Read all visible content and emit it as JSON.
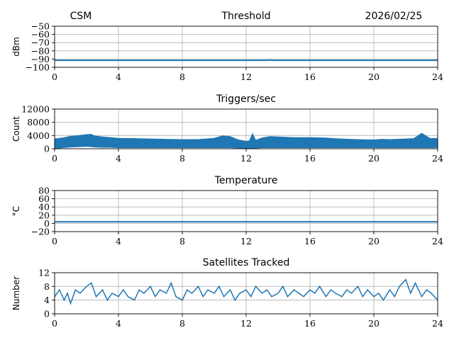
{
  "header": {
    "left": "CSM",
    "date": "2026/02/25"
  },
  "colors": {
    "series": "#1f77b4",
    "grid": "#b0b0b0"
  },
  "chart_data": [
    {
      "type": "line",
      "title": "Threshold",
      "xlabel": "",
      "ylabel": "dBm",
      "xlim": [
        0,
        24
      ],
      "ylim": [
        -100,
        -50
      ],
      "xticks": [
        0,
        4,
        8,
        12,
        16,
        20,
        24
      ],
      "yticks": [
        -100,
        -90,
        -80,
        -70,
        -60,
        -50
      ],
      "grid": true,
      "style": "line",
      "series": [
        {
          "x": [
            0,
            4,
            8,
            12,
            13.4,
            13.5,
            13.6,
            16,
            20,
            24
          ],
          "y": [
            -91.5,
            -91.5,
            -91.5,
            -91.5,
            -91.5,
            -91,
            -91.5,
            -91.5,
            -91.5,
            -91.5
          ]
        }
      ]
    },
    {
      "type": "area",
      "title": "Triggers/sec",
      "xlabel": "",
      "ylabel": "Count",
      "xlim": [
        0,
        24
      ],
      "ylim": [
        0,
        12000
      ],
      "xticks": [
        0,
        4,
        8,
        12,
        16,
        20,
        24
      ],
      "yticks": [
        0,
        4000,
        8000,
        12000
      ],
      "grid": true,
      "style": "band",
      "series": [
        {
          "x": [
            0,
            0.5,
            1,
            1.5,
            2,
            2.3,
            2.5,
            3,
            3.5,
            4,
            5,
            6,
            7,
            8,
            9,
            10,
            10.5,
            11,
            11.5,
            12,
            12.2,
            12.4,
            12.6,
            13,
            13.5,
            14,
            14.5,
            15,
            16,
            17,
            17.5,
            18,
            18.5,
            19,
            20,
            20.5,
            21,
            22,
            22.5,
            23,
            23.5,
            24
          ],
          "y": [
            3000,
            3300,
            3800,
            4000,
            4300,
            4400,
            3900,
            3600,
            3400,
            3200,
            3100,
            3000,
            2900,
            2800,
            2800,
            3200,
            3900,
            3700,
            2700,
            2300,
            2400,
            4600,
            2600,
            3300,
            3700,
            3600,
            3500,
            3400,
            3400,
            3300,
            3100,
            3000,
            2900,
            2800,
            2700,
            2900,
            2800,
            3000,
            3100,
            4700,
            3200,
            3100
          ],
          "low": [
            0,
            300,
            500,
            600,
            700,
            600,
            500,
            400,
            400,
            300,
            300,
            300,
            300,
            300,
            300,
            300,
            300,
            300,
            200,
            100,
            100,
            200,
            200,
            300,
            300,
            300,
            300,
            300,
            300,
            300,
            300,
            300,
            300,
            300,
            300,
            300,
            300,
            300,
            300,
            300,
            300,
            300
          ]
        }
      ]
    },
    {
      "type": "line",
      "title": "Temperature",
      "xlabel": "",
      "ylabel": "°C",
      "xlim": [
        0,
        24
      ],
      "ylim": [
        -20,
        80
      ],
      "xticks": [
        0,
        4,
        8,
        12,
        16,
        20,
        24
      ],
      "yticks": [
        -20,
        0,
        20,
        40,
        60,
        80
      ],
      "grid": true,
      "style": "line",
      "series": [
        {
          "x": [
            0,
            24
          ],
          "y": [
            4,
            4
          ]
        }
      ]
    },
    {
      "type": "line",
      "title": "Satellites Tracked",
      "xlabel": "",
      "ylabel": "Number",
      "xlim": [
        0,
        24
      ],
      "ylim": [
        0,
        12
      ],
      "xticks": [
        0,
        4,
        8,
        12,
        16,
        20,
        24
      ],
      "yticks": [
        0,
        4,
        8,
        12
      ],
      "grid": true,
      "style": "line",
      "series": [
        {
          "x": [
            0,
            0.3,
            0.6,
            0.8,
            1,
            1.3,
            1.6,
            2,
            2.3,
            2.6,
            3,
            3.3,
            3.6,
            4,
            4.3,
            4.6,
            5,
            5.3,
            5.6,
            6,
            6.3,
            6.6,
            7,
            7.3,
            7.6,
            8,
            8.3,
            8.6,
            9,
            9.3,
            9.6,
            10,
            10.3,
            10.6,
            11,
            11.3,
            11.6,
            12,
            12.3,
            12.6,
            13,
            13.3,
            13.6,
            14,
            14.3,
            14.6,
            15,
            15.3,
            15.6,
            16,
            16.3,
            16.6,
            17,
            17.3,
            17.6,
            18,
            18.3,
            18.6,
            19,
            19.3,
            19.6,
            20,
            20.3,
            20.6,
            21,
            21.3,
            21.6,
            22,
            22.3,
            22.6,
            23,
            23.3,
            23.6,
            24
          ],
          "y": [
            5,
            7,
            4,
            6,
            3,
            7,
            6,
            8,
            9,
            5,
            7,
            4,
            6,
            5,
            7,
            5,
            4,
            7,
            6,
            8,
            5,
            7,
            6,
            9,
            5,
            4,
            7,
            6,
            8,
            5,
            7,
            6,
            8,
            5,
            7,
            4,
            6,
            7,
            5,
            8,
            6,
            7,
            5,
            6,
            8,
            5,
            7,
            6,
            5,
            7,
            6,
            8,
            5,
            7,
            6,
            5,
            7,
            6,
            8,
            5,
            7,
            5,
            6,
            4,
            7,
            5,
            8,
            10,
            6,
            9,
            5,
            7,
            6,
            4
          ]
        }
      ]
    }
  ]
}
